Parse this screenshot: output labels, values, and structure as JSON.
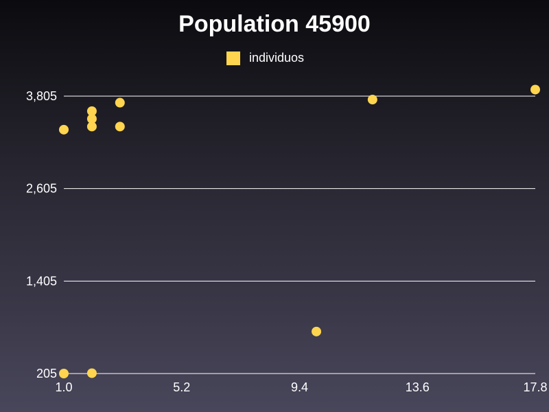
{
  "chart_data": {
    "type": "scatter",
    "title": "Population 45900",
    "xlabel": "",
    "ylabel": "",
    "legend": {
      "placement": "top-center"
    },
    "grid": {
      "horizontal": true,
      "vertical": false
    },
    "xlim": [
      1.0,
      17.8
    ],
    "ylim": [
      205,
      3805
    ],
    "x_ticks": [
      "1.0",
      "5.2",
      "9.4",
      "13.6",
      "17.8"
    ],
    "y_ticks": [
      "205",
      "1,405",
      "2,605",
      "3,805"
    ],
    "series": [
      {
        "name": "individuos",
        "color": "#ffd54f",
        "points": [
          {
            "x": 1.0,
            "y": 3370
          },
          {
            "x": 1.0,
            "y": 205
          },
          {
            "x": 2.0,
            "y": 3610
          },
          {
            "x": 2.0,
            "y": 3510
          },
          {
            "x": 2.0,
            "y": 3410
          },
          {
            "x": 2.0,
            "y": 210
          },
          {
            "x": 3.0,
            "y": 3720
          },
          {
            "x": 3.0,
            "y": 3410
          },
          {
            "x": 10.0,
            "y": 750
          },
          {
            "x": 12.0,
            "y": 3760
          },
          {
            "x": 17.8,
            "y": 3890
          }
        ]
      }
    ]
  }
}
